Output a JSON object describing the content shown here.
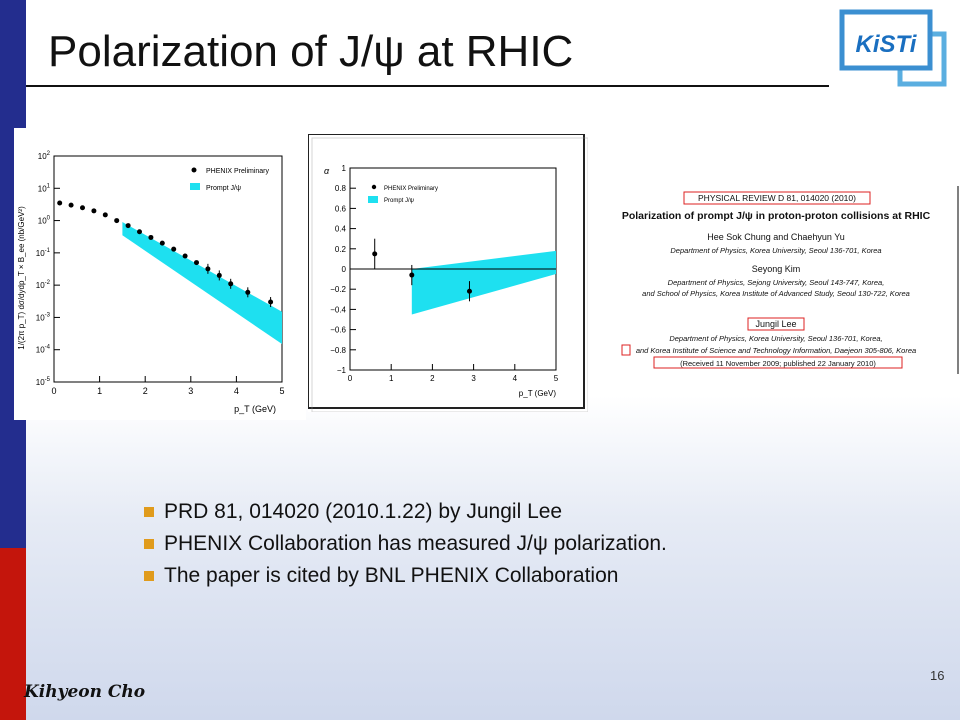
{
  "slide": {
    "title": "Polarization of J/ψ at RHIC",
    "author": "Kihyeon Cho",
    "page_number": "16",
    "accent_colors": {
      "left_bar_top": "#232d8e",
      "left_bar_bottom": "#c4150c",
      "bullet": "#e09b1c"
    }
  },
  "logo": {
    "text": "KiSTi",
    "icon": "kisti-logo-icon"
  },
  "plot1": {
    "legend": [
      "PHENIX Preliminary",
      "Prompt J/ψ"
    ],
    "ylabel": "1/(2π p_T) dσ/dydp_T × B_ee (nb/GeV²)",
    "xlabel": "p_T (GeV)",
    "ytick_exps": [
      "2",
      "1",
      "0",
      "-1",
      "-2",
      "-3",
      "-4",
      "-5"
    ],
    "xticks": [
      "0",
      "1",
      "2",
      "3",
      "4",
      "5"
    ]
  },
  "plot2": {
    "legend": [
      "PHENIX Preliminary",
      "Prompt J/ψ"
    ],
    "ylabel": "α",
    "xlabel": "p_T (GeV)",
    "yticks": [
      "1",
      "0.8",
      "0.6",
      "0.4",
      "0.2",
      "0",
      "−0.2",
      "−0.4",
      "−0.6",
      "−0.8",
      "−1"
    ],
    "xticks": [
      "0",
      "1",
      "2",
      "3",
      "4",
      "5"
    ]
  },
  "paper": {
    "journal": "PHYSICAL REVIEW D 81, 014020 (2010)",
    "title": "Polarization of prompt J/ψ in proton-proton collisions at RHIC",
    "authors1": "Hee Sok Chung and Chaehyun Yu",
    "affil1": "Department of Physics, Korea University, Seoul 136-701, Korea",
    "authors2": "Seyong Kim",
    "affil2a": "Department of Physics, Sejong University, Seoul 143-747, Korea,",
    "affil2b": "and School of Physics, Korea Institute of Advanced Study, Seoul 130-722, Korea",
    "authors3": "Jungil Lee",
    "affil3a": "Department of Physics, Korea University, Seoul 136-701, Korea,",
    "affil3b": "and Korea Institute of Science and Technology Information, Daejeon 305-806, Korea",
    "received": "(Received 11 November 2009; published 22 January 2010)"
  },
  "bullets": [
    "PRD 81, 014020 (2010.1.22) by Jungil Lee",
    "PHENIX Collaboration has measured J/ψ polarization.",
    "The paper is cited by BNL PHENIX Collaboration"
  ],
  "chart_data": [
    {
      "type": "scatter",
      "title": "",
      "xlabel": "p_T (GeV)",
      "ylabel": "1/(2π p_T) dσ/dydp_T × B_ee (nb/GeV²)",
      "xlim": [
        0,
        5
      ],
      "ylim": [
        1e-05,
        100
      ],
      "yscale": "log",
      "series": [
        {
          "name": "PHENIX Preliminary",
          "x": [
            0.125,
            0.375,
            0.625,
            0.875,
            1.125,
            1.375,
            1.625,
            1.875,
            2.125,
            2.375,
            2.625,
            2.875,
            3.125,
            3.375,
            3.625,
            3.875,
            4.25,
            4.75
          ],
          "y": [
            3.5,
            3.0,
            2.5,
            2.0,
            1.5,
            1.0,
            0.7,
            0.45,
            0.3,
            0.2,
            0.13,
            0.08,
            0.05,
            0.032,
            0.02,
            0.011,
            0.006,
            0.003
          ]
        },
        {
          "name": "Prompt J/ψ",
          "band_x": [
            1.5,
            5.0
          ],
          "band_upper": [
            0.9,
            0.0015
          ],
          "band_lower": [
            0.35,
            0.00015
          ]
        }
      ]
    },
    {
      "type": "scatter",
      "title": "",
      "xlabel": "p_T (GeV)",
      "ylabel": "α",
      "xlim": [
        0,
        5
      ],
      "ylim": [
        -1,
        1
      ],
      "series": [
        {
          "name": "PHENIX Preliminary",
          "x": [
            0.6,
            1.5,
            2.9
          ],
          "y": [
            0.15,
            -0.06,
            -0.22
          ],
          "err": [
            0.15,
            0.1,
            0.1
          ]
        },
        {
          "name": "Prompt J/ψ",
          "band_x": [
            1.5,
            5.0
          ],
          "band_upper": [
            0.0,
            0.18
          ],
          "band_lower": [
            -0.45,
            -0.05
          ]
        }
      ]
    }
  ]
}
